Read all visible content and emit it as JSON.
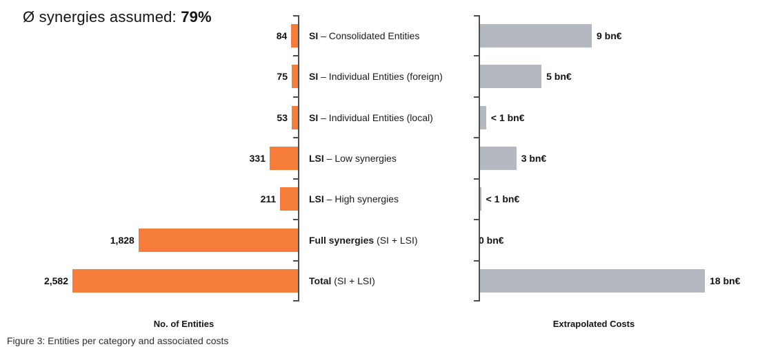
{
  "annotation": {
    "prefix": "Ø synergies assumed: ",
    "value": "79%"
  },
  "caption": "Figure 3: Entities per category and associated costs",
  "colors": {
    "entities_bar": "#F57C39",
    "costs_bar": "#B4B8C1",
    "axis": "#4D4D4D",
    "text": "#141414"
  },
  "chart_data": {
    "type": "bar",
    "variant": "butterfly",
    "grid": false,
    "legend": "none",
    "annotation": "Ø synergies assumed: 79%",
    "caption": "Figure 3: Entities per category and associated costs",
    "categories": [
      {
        "bold": "SI",
        "rest": " – Consolidated Entities"
      },
      {
        "bold": "SI",
        "rest": " – Individual Entities (foreign)"
      },
      {
        "bold": "SI",
        "rest": " – Individual Entities (local)"
      },
      {
        "bold": "LSI",
        "rest": " – Low synergies"
      },
      {
        "bold": "LSI",
        "rest": " – High synergies"
      },
      {
        "bold": "Full synergies",
        "rest": " (SI + LSI)"
      },
      {
        "bold": "Total",
        "rest": " (SI + LSI)"
      }
    ],
    "series": [
      {
        "name": "No. of Entities",
        "side": "left",
        "color": "#F57C39",
        "values": [
          84,
          75,
          53,
          331,
          211,
          1828,
          2582
        ],
        "labels": [
          "84",
          "75",
          "53",
          "331",
          "211",
          "1,828",
          "2,582"
        ],
        "axis_range": [
          0,
          2582
        ]
      },
      {
        "name": "Extrapolated Costs",
        "side": "right",
        "color": "#B4B8C1",
        "values": [
          9,
          5,
          0.6,
          3,
          0.2,
          0,
          18
        ],
        "labels": [
          "9 bn€",
          "5 bn€",
          "< 1 bn€",
          "3 bn€",
          "< 1 bn€",
          "0 bn€",
          "18 bn€"
        ],
        "axis_range": [
          0,
          18
        ]
      }
    ]
  }
}
